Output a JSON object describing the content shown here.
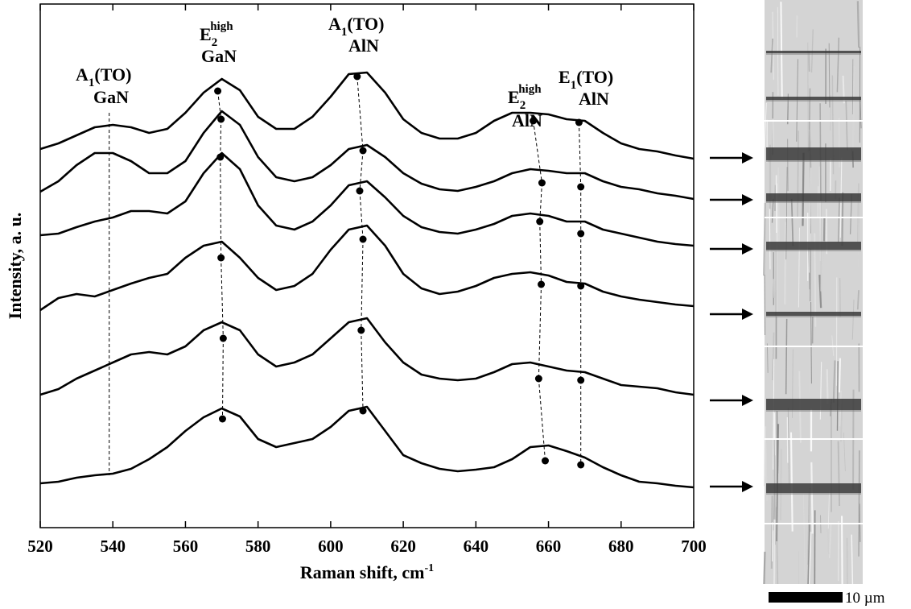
{
  "chart_data": {
    "type": "line",
    "x_label": {
      "text": "Raman shift, cm",
      "superscript": "-1"
    },
    "y_label": "Intensity, a. u.",
    "xlim": [
      520,
      700
    ],
    "xticks": [
      520,
      540,
      560,
      580,
      600,
      620,
      640,
      660,
      680,
      700
    ],
    "ylim": [
      0,
      650
    ],
    "x": [
      520,
      525,
      530,
      535,
      540,
      545,
      550,
      555,
      560,
      565,
      570,
      575,
      580,
      585,
      590,
      595,
      600,
      605,
      610,
      615,
      620,
      625,
      630,
      635,
      640,
      645,
      650,
      655,
      660,
      665,
      670,
      675,
      680,
      685,
      690,
      695,
      700
    ],
    "series": [
      {
        "color": "#000000",
        "values": [
          470,
          477,
          487,
          497,
          500,
          497,
          490,
          495,
          515,
          540,
          557,
          543,
          510,
          495,
          495,
          510,
          535,
          563,
          565,
          540,
          507,
          490,
          483,
          483,
          490,
          505,
          515,
          515,
          513,
          507,
          505,
          490,
          477,
          470,
          467,
          462,
          458
        ],
        "peak_x": [
          568.9,
          607.3,
          655.8,
          668.4
        ],
        "peak_y": [
          542,
          560,
          505,
          503
        ]
      },
      {
        "color": "#000000",
        "values": [
          417,
          430,
          450,
          465,
          465,
          455,
          440,
          440,
          455,
          490,
          517,
          500,
          460,
          435,
          430,
          435,
          450,
          470,
          475,
          460,
          440,
          427,
          420,
          418,
          423,
          430,
          440,
          445,
          443,
          440,
          440,
          430,
          423,
          420,
          415,
          412,
          408
        ],
        "peak_x": [
          569.8,
          608.9,
          658.2,
          668.9
        ],
        "peak_y": [
          507,
          468,
          428,
          423
        ]
      },
      {
        "color": "#000000",
        "values": [
          363,
          365,
          373,
          380,
          385,
          393,
          393,
          390,
          405,
          440,
          465,
          445,
          400,
          375,
          370,
          380,
          400,
          425,
          430,
          410,
          387,
          373,
          367,
          365,
          370,
          377,
          387,
          390,
          387,
          380,
          380,
          370,
          365,
          360,
          355,
          352,
          350
        ],
        "peak_x": [
          569.6,
          608,
          657.6,
          668.9
        ],
        "peak_y": [
          460,
          418,
          380,
          365
        ]
      },
      {
        "color": "#000000",
        "values": [
          270,
          285,
          290,
          287,
          295,
          303,
          310,
          315,
          335,
          350,
          355,
          335,
          310,
          295,
          300,
          315,
          345,
          370,
          375,
          350,
          315,
          297,
          290,
          293,
          300,
          310,
          315,
          317,
          313,
          305,
          303,
          293,
          287,
          283,
          280,
          277,
          275
        ],
        "peak_x": [
          569.8,
          608.9,
          658,
          668.9
        ],
        "peak_y": [
          335,
          358,
          302,
          300
        ]
      },
      {
        "color": "#000000",
        "values": [
          165,
          172,
          185,
          195,
          205,
          215,
          218,
          215,
          225,
          245,
          255,
          245,
          215,
          200,
          205,
          215,
          235,
          255,
          260,
          230,
          205,
          190,
          185,
          183,
          185,
          193,
          203,
          205,
          200,
          195,
          193,
          185,
          177,
          175,
          173,
          168,
          165
        ],
        "peak_x": [
          570.4,
          608.4,
          657.3,
          668.9
        ],
        "peak_y": [
          235,
          245,
          185,
          183
        ]
      },
      {
        "color": "#000000",
        "values": [
          55,
          57,
          62,
          65,
          67,
          73,
          85,
          100,
          120,
          137,
          148,
          138,
          110,
          100,
          105,
          110,
          125,
          145,
          150,
          120,
          90,
          80,
          73,
          70,
          72,
          75,
          85,
          100,
          102,
          95,
          87,
          75,
          65,
          57,
          55,
          52,
          50
        ],
        "peak_x": [
          570.2,
          608.9,
          659.1,
          668.9
        ],
        "peak_y": [
          135,
          145,
          83,
          78
        ]
      }
    ],
    "reference_line_x": 539,
    "annotations": [
      {
        "symbol": "A",
        "subscript": "1",
        "mode": "(TO)",
        "material": "GaN"
      },
      {
        "symbol": "E",
        "subscript": "2",
        "superscript": "high",
        "material": "GaN"
      },
      {
        "symbol": "A",
        "subscript": "1",
        "mode": "(TO)",
        "material": "AlN"
      },
      {
        "symbol": "E",
        "subscript": "2",
        "superscript": "high",
        "material": "AlN"
      },
      {
        "symbol": "E",
        "subscript": "1",
        "mode": "(TO)",
        "material": "AlN"
      }
    ],
    "scale_bar_label": "10 µm"
  }
}
